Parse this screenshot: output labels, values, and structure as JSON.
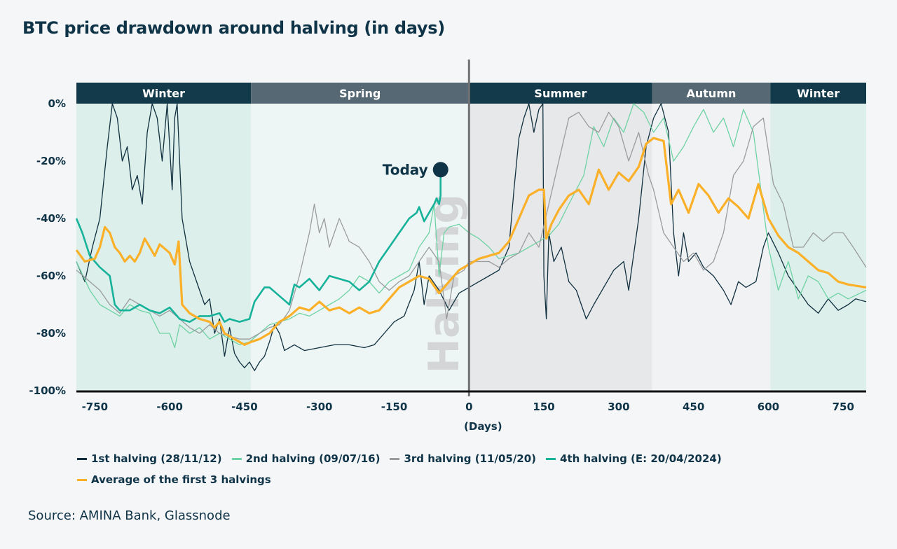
{
  "chart_data": {
    "type": "line",
    "title": "BTC price drawdown around halving (in days)",
    "xlabel": "(Days)",
    "ylabel": "",
    "xlim": [
      -787,
      796
    ],
    "ylim": [
      -100,
      0
    ],
    "xticks": [
      -750,
      -600,
      -450,
      -300,
      -150,
      0,
      150,
      300,
      450,
      600,
      750
    ],
    "yticks": [
      0,
      -20,
      -40,
      -60,
      -80,
      -100
    ],
    "ytick_labels": [
      "0%",
      "-20%",
      "-40%",
      "-60%",
      "-80%",
      "-100%"
    ],
    "grid": false,
    "legend_position": "bottom",
    "halving_marker": {
      "x": 0,
      "label": "Halving"
    },
    "today_marker": {
      "x": -57,
      "y": -23,
      "label": "Today"
    },
    "seasons": [
      {
        "label": "Winter",
        "from": -787,
        "to": -437,
        "band": "#123a4a",
        "fill": "#dcefeb"
      },
      {
        "label": "Spring",
        "from": -437,
        "to": 0,
        "band": "#566874",
        "fill": "#eef6f5"
      },
      {
        "label": "Summer",
        "from": 0,
        "to": 367,
        "band": "#123a4a",
        "fill": "#e7e8ea"
      },
      {
        "label": "Autumn",
        "from": 367,
        "to": 604,
        "band": "#566874",
        "fill": "#f1f2f4"
      },
      {
        "label": "Winter",
        "from": 604,
        "to": 796,
        "band": "#123a4a",
        "fill": "#dcefeb"
      }
    ],
    "series": [
      {
        "name": "1st halving (28/11/12)",
        "color": "#10303f",
        "width": 1.3,
        "x": [
          -787,
          -770,
          -755,
          -740,
          -725,
          -715,
          -705,
          -695,
          -685,
          -675,
          -665,
          -655,
          -645,
          -635,
          -625,
          -615,
          -605,
          -595,
          -590,
          -585,
          -575,
          -570,
          -560,
          -550,
          -540,
          -530,
          -520,
          -510,
          -500,
          -490,
          -480,
          -470,
          -460,
          -450,
          -440,
          -430,
          -420,
          -410,
          -400,
          -390,
          -380,
          -370,
          -350,
          -330,
          -300,
          -270,
          -240,
          -210,
          -190,
          -170,
          -150,
          -130,
          -110,
          -100,
          -90,
          -80,
          -60,
          -40,
          -20,
          0,
          20,
          40,
          60,
          80,
          90,
          100,
          110,
          120,
          130,
          140,
          148,
          150,
          155,
          160,
          170,
          185,
          200,
          215,
          235,
          250,
          270,
          290,
          310,
          320,
          340,
          355,
          370,
          385,
          400,
          410,
          420,
          430,
          440,
          455,
          470,
          490,
          510,
          525,
          540,
          555,
          575,
          590,
          600,
          620,
          640,
          660,
          680,
          700,
          720,
          740,
          760,
          775,
          796
        ],
        "y": [
          -55,
          -62,
          -50,
          -40,
          -15,
          0,
          -5,
          -20,
          -15,
          -30,
          -25,
          -35,
          -10,
          0,
          -5,
          -20,
          0,
          -30,
          -5,
          0,
          -40,
          -45,
          -55,
          -60,
          -65,
          -70,
          -68,
          -80,
          -75,
          -88,
          -78,
          -87,
          -90,
          -92,
          -90,
          -93,
          -90,
          -88,
          -83,
          -77,
          -80,
          -86,
          -84,
          -86,
          -85,
          -84,
          -84,
          -85,
          -84,
          -80,
          -76,
          -74,
          -65,
          -55,
          -70,
          -60,
          -65,
          -72,
          -66,
          -64,
          -62,
          -60,
          -58,
          -50,
          -30,
          -12,
          -5,
          0,
          -10,
          -2,
          0,
          -60,
          -75,
          -45,
          -55,
          -50,
          -62,
          -65,
          -75,
          -70,
          -64,
          -58,
          -55,
          -65,
          -40,
          -15,
          -5,
          0,
          -10,
          -45,
          -60,
          -45,
          -55,
          -52,
          -57,
          -60,
          -65,
          -70,
          -62,
          -64,
          -62,
          -50,
          -45,
          -52,
          -60,
          -65,
          -70,
          -73,
          -68,
          -72,
          -70,
          -68,
          -69
        ]
      },
      {
        "name": "2nd halving (09/07/16)",
        "color": "#6fd3a5",
        "width": 1.3,
        "x": [
          -787,
          -760,
          -740,
          -720,
          -700,
          -680,
          -660,
          -640,
          -620,
          -600,
          -590,
          -580,
          -560,
          -540,
          -520,
          -500,
          -480,
          -460,
          -440,
          -420,
          -400,
          -380,
          -360,
          -340,
          -320,
          -300,
          -280,
          -260,
          -240,
          -220,
          -200,
          -180,
          -160,
          -140,
          -120,
          -100,
          -80,
          -70,
          -60,
          -50,
          -40,
          -20,
          0,
          20,
          40,
          60,
          80,
          100,
          120,
          140,
          160,
          180,
          200,
          230,
          250,
          270,
          290,
          310,
          330,
          350,
          370,
          390,
          410,
          430,
          450,
          470,
          490,
          510,
          530,
          550,
          570,
          585,
          600,
          620,
          640,
          660,
          680,
          700,
          720,
          740,
          760,
          796
        ],
        "y": [
          -55,
          -65,
          -70,
          -72,
          -74,
          -70,
          -72,
          -73,
          -80,
          -80,
          -85,
          -77,
          -80,
          -78,
          -82,
          -80,
          -82,
          -84,
          -83,
          -80,
          -77,
          -76,
          -75,
          -73,
          -74,
          -72,
          -70,
          -68,
          -65,
          -60,
          -62,
          -66,
          -62,
          -60,
          -58,
          -50,
          -45,
          -35,
          -60,
          -45,
          -43,
          -42,
          -45,
          -47,
          -50,
          -54,
          -53,
          -52,
          -50,
          -48,
          -46,
          -42,
          -35,
          -25,
          -8,
          -15,
          -5,
          -10,
          0,
          -3,
          -10,
          -5,
          -20,
          -15,
          -8,
          -2,
          -10,
          -5,
          -15,
          -2,
          -10,
          -30,
          -50,
          -65,
          -55,
          -68,
          -60,
          -62,
          -68,
          -66,
          -68,
          -65
        ]
      },
      {
        "name": "3rd halving (11/05/20)",
        "color": "#9a9c9e",
        "width": 1.3,
        "x": [
          -787,
          -760,
          -740,
          -720,
          -700,
          -680,
          -660,
          -640,
          -620,
          -600,
          -580,
          -560,
          -540,
          -520,
          -500,
          -480,
          -460,
          -440,
          -420,
          -400,
          -380,
          -360,
          -340,
          -320,
          -310,
          -300,
          -290,
          -280,
          -270,
          -260,
          -240,
          -220,
          -200,
          -180,
          -160,
          -140,
          -120,
          -100,
          -80,
          -60,
          -45,
          -30,
          -10,
          0,
          20,
          40,
          60,
          80,
          100,
          120,
          140,
          160,
          180,
          200,
          220,
          240,
          260,
          280,
          300,
          320,
          340,
          360,
          370,
          390,
          410,
          430,
          450,
          470,
          490,
          510,
          530,
          550,
          570,
          590,
          610,
          630,
          650,
          670,
          690,
          710,
          730,
          750,
          770,
          796
        ],
        "y": [
          -58,
          -62,
          -65,
          -70,
          -73,
          -68,
          -70,
          -72,
          -74,
          -72,
          -75,
          -78,
          -80,
          -77,
          -80,
          -81,
          -82,
          -82,
          -80,
          -78,
          -77,
          -72,
          -60,
          -45,
          -35,
          -45,
          -40,
          -50,
          -45,
          -40,
          -48,
          -50,
          -55,
          -62,
          -65,
          -62,
          -60,
          -55,
          -50,
          -55,
          -75,
          -60,
          -58,
          -55,
          -55,
          -55,
          -57,
          -54,
          -52,
          -45,
          -50,
          -35,
          -20,
          -5,
          -3,
          -8,
          -10,
          -3,
          -8,
          -20,
          -10,
          -25,
          -30,
          -45,
          -50,
          -55,
          -52,
          -58,
          -55,
          -45,
          -25,
          -20,
          -8,
          -5,
          -28,
          -35,
          -50,
          -50,
          -45,
          -48,
          -45,
          -45,
          -50,
          -57
        ]
      },
      {
        "name": "4th halving (E: 20/04/2024)",
        "color": "#17b29a",
        "width": 2.6,
        "x": [
          -787,
          -775,
          -760,
          -750,
          -740,
          -720,
          -710,
          -700,
          -680,
          -660,
          -640,
          -620,
          -600,
          -580,
          -560,
          -540,
          -520,
          -500,
          -490,
          -480,
          -460,
          -440,
          -430,
          -410,
          -400,
          -380,
          -360,
          -350,
          -340,
          -320,
          -300,
          -280,
          -260,
          -240,
          -220,
          -200,
          -180,
          -160,
          -140,
          -120,
          -105,
          -100,
          -90,
          -80,
          -70,
          -65,
          -60,
          -57,
          -57
        ],
        "y": [
          -40,
          -45,
          -53,
          -55,
          -57,
          -60,
          -70,
          -72,
          -72,
          -70,
          -72,
          -73,
          -71,
          -75,
          -76,
          -74,
          -74,
          -73,
          -76,
          -75,
          -76,
          -75,
          -69,
          -64,
          -64,
          -67,
          -70,
          -63,
          -64,
          -61,
          -65,
          -60,
          -61,
          -62,
          -65,
          -62,
          -55,
          -50,
          -45,
          -40,
          -38,
          -36,
          -41,
          -38,
          -35,
          -33,
          -35,
          -32,
          -23
        ]
      },
      {
        "name": "Average of the first 3 halvings",
        "color": "#fbb02a",
        "width": 3.2,
        "x": [
          -787,
          -770,
          -750,
          -740,
          -730,
          -720,
          -710,
          -700,
          -690,
          -680,
          -670,
          -660,
          -650,
          -640,
          -630,
          -620,
          -600,
          -590,
          -582,
          -575,
          -560,
          -540,
          -520,
          -510,
          -500,
          -490,
          -470,
          -450,
          -437,
          -420,
          -400,
          -380,
          -360,
          -340,
          -320,
          -300,
          -280,
          -260,
          -240,
          -220,
          -200,
          -180,
          -160,
          -140,
          -120,
          -100,
          -80,
          -60,
          -40,
          -20,
          0,
          20,
          40,
          60,
          80,
          100,
          120,
          140,
          150,
          155,
          165,
          180,
          200,
          220,
          240,
          260,
          280,
          300,
          320,
          340,
          355,
          370,
          390,
          405,
          420,
          440,
          460,
          480,
          500,
          520,
          540,
          560,
          580,
          600,
          620,
          640,
          660,
          680,
          700,
          720,
          740,
          760,
          796
        ],
        "y": [
          -51,
          -55,
          -54,
          -50,
          -43,
          -45,
          -50,
          -52,
          -55,
          -53,
          -55,
          -52,
          -47,
          -50,
          -53,
          -49,
          -52,
          -56,
          -48,
          -70,
          -73,
          -75,
          -76,
          -78,
          -76,
          -80,
          -82,
          -84,
          -83,
          -82,
          -80,
          -76,
          -74,
          -71,
          -72,
          -69,
          -72,
          -71,
          -73,
          -71,
          -73,
          -72,
          -68,
          -64,
          -62,
          -60,
          -61,
          -66,
          -62,
          -58,
          -56,
          -54,
          -53,
          -52,
          -48,
          -40,
          -32,
          -30,
          -30,
          -47,
          -42,
          -37,
          -32,
          -30,
          -35,
          -23,
          -30,
          -24,
          -27,
          -22,
          -14,
          -12,
          -13,
          -35,
          -30,
          -38,
          -28,
          -32,
          -38,
          -33,
          -36,
          -40,
          -28,
          -40,
          -46,
          -50,
          -52,
          -55,
          -58,
          -59,
          -62,
          -63,
          -64
        ]
      }
    ]
  },
  "legend_rows": [
    [
      0,
      1,
      2,
      3
    ],
    [
      4
    ]
  ],
  "source": "Source: AMINA Bank, Glassnode"
}
